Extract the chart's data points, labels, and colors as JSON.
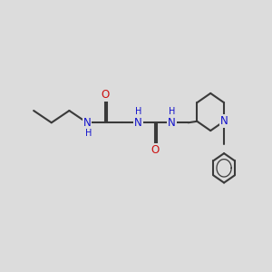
{
  "bg_color": "#dcdcdc",
  "bond_color": "#3a3a3a",
  "N_color": "#1010cc",
  "O_color": "#cc1010",
  "font_size_atom": 8.5,
  "font_size_H": 7.0,
  "line_width": 1.5,
  "fig_width": 3.0,
  "fig_height": 3.0,
  "dpi": 100,
  "xlim": [
    0,
    12
  ],
  "ylim": [
    0,
    10
  ]
}
